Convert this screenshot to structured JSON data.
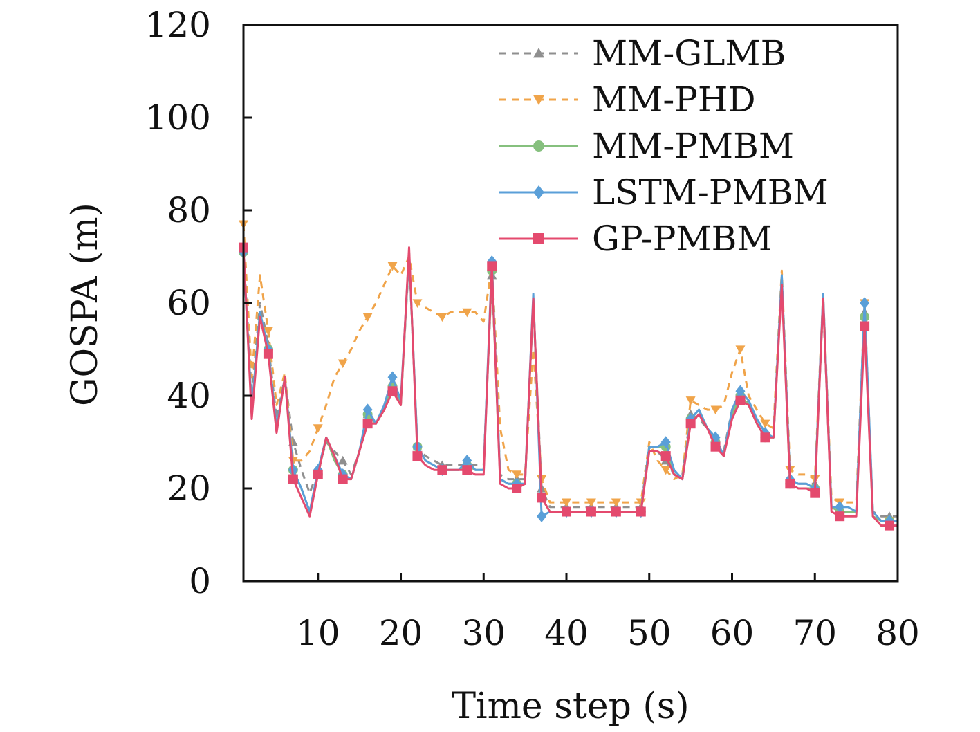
{
  "chart_data": {
    "type": "line",
    "title": "",
    "xlabel": "Time step (s)",
    "ylabel": "GOSPA (m)",
    "xlim": [
      1,
      80
    ],
    "ylim": [
      0,
      120
    ],
    "x_ticks": [
      10,
      20,
      30,
      40,
      50,
      60,
      70,
      80
    ],
    "y_ticks": [
      0,
      20,
      40,
      60,
      80,
      100,
      120
    ],
    "grid": false,
    "legend_position": "top-right",
    "x": [
      1,
      2,
      3,
      4,
      5,
      6,
      7,
      8,
      9,
      10,
      11,
      12,
      13,
      14,
      15,
      16,
      17,
      18,
      19,
      20,
      21,
      22,
      23,
      24,
      25,
      26,
      27,
      28,
      29,
      30,
      31,
      32,
      33,
      34,
      35,
      36,
      37,
      38,
      39,
      40,
      41,
      42,
      43,
      44,
      45,
      46,
      47,
      48,
      49,
      50,
      51,
      52,
      53,
      54,
      55,
      56,
      57,
      58,
      59,
      60,
      61,
      62,
      63,
      64,
      65,
      66,
      67,
      68,
      69,
      70,
      71,
      72,
      73,
      74,
      75,
      76,
      77,
      78,
      79,
      80
    ],
    "series": [
      {
        "name": "MM-GLMB",
        "color": "#8f8f8f",
        "dash": "dashed",
        "marker": "triangle-up",
        "values": [
          72,
          40,
          60,
          51,
          35,
          44,
          30,
          24,
          19,
          24,
          30,
          28,
          26,
          23,
          28,
          36,
          34,
          38,
          43,
          38,
          70,
          29,
          27,
          26,
          25,
          25,
          25,
          25,
          25,
          25,
          66,
          23,
          22,
          22,
          22,
          60,
          20,
          16,
          16,
          16,
          16,
          16,
          16,
          16,
          16,
          16,
          16,
          16,
          16,
          29,
          28,
          26,
          23,
          23,
          36,
          35,
          33,
          30,
          28,
          37,
          41,
          38,
          35,
          32,
          31,
          66,
          22,
          21,
          21,
          21,
          60,
          16,
          15,
          15,
          15,
          58,
          15,
          14,
          14,
          14
        ]
      },
      {
        "name": "MM-PHD",
        "color": "#f0a44a",
        "dash": "dashed",
        "marker": "triangle-down",
        "values": [
          77,
          44,
          66,
          54,
          38,
          45,
          26,
          26,
          28,
          33,
          38,
          44,
          47,
          50,
          54,
          57,
          60,
          64,
          68,
          66,
          70,
          60,
          59,
          58,
          57,
          58,
          58,
          58,
          58,
          56,
          68,
          33,
          24,
          23,
          23,
          50,
          22,
          17,
          17,
          17,
          17,
          17,
          17,
          17,
          17,
          17,
          17,
          17,
          17,
          30,
          26,
          24,
          22,
          23,
          39,
          38,
          37,
          37,
          38,
          45,
          50,
          40,
          37,
          34,
          33,
          67,
          24,
          23,
          23,
          22,
          62,
          18,
          17,
          17,
          17,
          60,
          15,
          13,
          13,
          13
        ]
      },
      {
        "name": "MM-PMBM",
        "color": "#86c07e",
        "dash": "solid",
        "marker": "circle",
        "values": [
          71,
          37,
          58,
          50,
          33,
          44,
          24,
          20,
          15,
          23,
          31,
          26,
          23,
          22,
          28,
          36,
          34,
          37,
          42,
          38,
          71,
          29,
          26,
          25,
          24,
          24,
          24,
          25,
          24,
          24,
          67,
          22,
          21,
          21,
          21,
          61,
          18,
          15,
          15,
          15,
          15,
          15,
          15,
          15,
          15,
          15,
          15,
          15,
          15,
          29,
          29,
          29,
          23,
          22,
          35,
          37,
          33,
          30,
          27,
          36,
          40,
          38,
          34,
          31,
          31,
          65,
          21,
          20,
          20,
          20,
          61,
          16,
          15,
          15,
          15,
          57,
          14,
          13,
          13,
          13
        ]
      },
      {
        "name": "LSTM-PMBM",
        "color": "#5a9fd8",
        "dash": "solid",
        "marker": "diamond",
        "values": [
          71,
          37,
          58,
          50,
          33,
          44,
          24,
          20,
          15,
          24,
          31,
          27,
          23,
          22,
          28,
          37,
          34,
          38,
          44,
          39,
          71,
          29,
          26,
          25,
          24,
          24,
          24,
          26,
          24,
          24,
          69,
          22,
          21,
          21,
          21,
          62,
          14,
          15,
          15,
          15,
          15,
          15,
          15,
          15,
          15,
          15,
          15,
          15,
          15,
          29,
          29,
          30,
          24,
          22,
          35,
          37,
          33,
          31,
          27,
          37,
          41,
          39,
          35,
          32,
          31,
          66,
          22,
          21,
          21,
          20,
          62,
          16,
          16,
          16,
          15,
          60,
          15,
          13,
          13,
          13
        ]
      },
      {
        "name": "GP-PMBM",
        "color": "#e44a6e",
        "dash": "solid",
        "marker": "square",
        "values": [
          72,
          35,
          57,
          49,
          32,
          44,
          22,
          18,
          14,
          23,
          31,
          27,
          22,
          22,
          28,
          34,
          34,
          37,
          41,
          38,
          72,
          27,
          25,
          24,
          24,
          24,
          24,
          24,
          23,
          23,
          68,
          21,
          20,
          20,
          21,
          61,
          18,
          15,
          15,
          15,
          15,
          15,
          15,
          15,
          15,
          15,
          15,
          15,
          15,
          28,
          28,
          27,
          23,
          22,
          34,
          36,
          33,
          29,
          27,
          35,
          39,
          38,
          34,
          31,
          31,
          64,
          21,
          20,
          20,
          19,
          61,
          15,
          14,
          14,
          14,
          55,
          14,
          12,
          12,
          12
        ]
      }
    ]
  }
}
